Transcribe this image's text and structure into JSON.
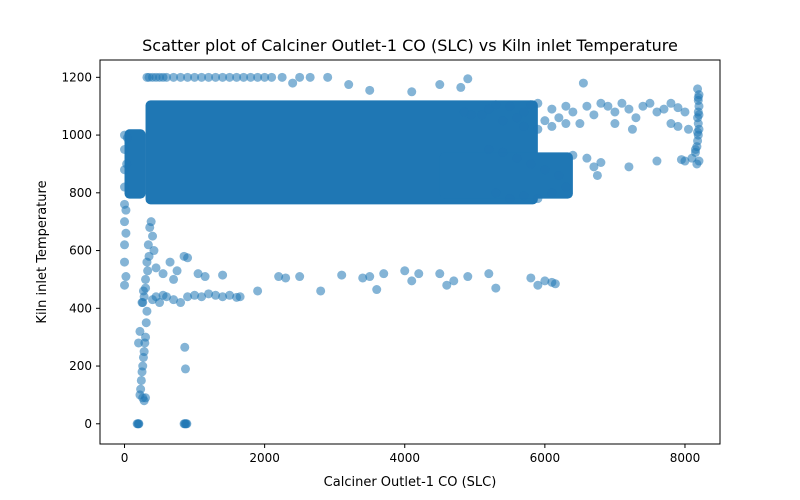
{
  "chart_data": {
    "type": "scatter",
    "title": "Scatter plot of Calciner Outlet-1 CO (SLC) vs Kiln inlet Temperature",
    "xlabel": "Calciner Outlet-1 CO (SLC)",
    "ylabel": "Kiln inlet Temperature",
    "xlim": [
      -350,
      8500
    ],
    "ylim": [
      -70,
      1260
    ],
    "xticks": [
      0,
      2000,
      4000,
      6000,
      8000
    ],
    "yticks": [
      0,
      200,
      400,
      600,
      800,
      1000,
      1200
    ],
    "grid": false,
    "marker_color": "#1f77b4",
    "marker_alpha": 0.55,
    "dense_regions": [
      {
        "x": [
          300,
          5900
        ],
        "y": [
          760,
          1120
        ]
      },
      {
        "x": [
          0,
          300
        ],
        "y": [
          780,
          1020
        ]
      },
      {
        "x": [
          4500,
          6400
        ],
        "y": [
          780,
          940
        ]
      }
    ],
    "points": [
      [
        0,
        480
      ],
      [
        0,
        560
      ],
      [
        0,
        620
      ],
      [
        0,
        700
      ],
      [
        0,
        760
      ],
      [
        0,
        820
      ],
      [
        0,
        880
      ],
      [
        0,
        950
      ],
      [
        0,
        1000
      ],
      [
        20,
        510
      ],
      [
        20,
        660
      ],
      [
        20,
        740
      ],
      [
        30,
        900
      ],
      [
        40,
        990
      ],
      [
        180,
        0
      ],
      [
        190,
        0
      ],
      [
        200,
        0
      ],
      [
        205,
        0
      ],
      [
        220,
        100
      ],
      [
        240,
        150
      ],
      [
        260,
        200
      ],
      [
        280,
        250
      ],
      [
        300,
        300
      ],
      [
        310,
        350
      ],
      [
        320,
        390
      ],
      [
        230,
        120
      ],
      [
        250,
        180
      ],
      [
        270,
        230
      ],
      [
        290,
        280
      ],
      [
        260,
        90
      ],
      [
        280,
        80
      ],
      [
        300,
        90
      ],
      [
        200,
        280
      ],
      [
        220,
        320
      ],
      [
        250,
        420
      ],
      [
        270,
        460
      ],
      [
        300,
        500
      ],
      [
        320,
        560
      ],
      [
        340,
        620
      ],
      [
        360,
        680
      ],
      [
        380,
        700
      ],
      [
        400,
        650
      ],
      [
        420,
        600
      ],
      [
        350,
        580
      ],
      [
        330,
        530
      ],
      [
        300,
        470
      ],
      [
        280,
        440
      ],
      [
        260,
        420
      ],
      [
        400,
        430
      ],
      [
        450,
        440
      ],
      [
        500,
        420
      ],
      [
        550,
        445
      ],
      [
        600,
        440
      ],
      [
        700,
        430
      ],
      [
        800,
        420
      ],
      [
        900,
        440
      ],
      [
        1000,
        445
      ],
      [
        1100,
        440
      ],
      [
        1200,
        450
      ],
      [
        1300,
        445
      ],
      [
        1400,
        440
      ],
      [
        1500,
        445
      ],
      [
        1600,
        438
      ],
      [
        1650,
        440
      ],
      [
        450,
        540
      ],
      [
        550,
        520
      ],
      [
        650,
        560
      ],
      [
        700,
        500
      ],
      [
        750,
        530
      ],
      [
        850,
        580
      ],
      [
        900,
        575
      ],
      [
        1050,
        520
      ],
      [
        1150,
        510
      ],
      [
        1400,
        515
      ],
      [
        1900,
        460
      ],
      [
        2200,
        510
      ],
      [
        2300,
        505
      ],
      [
        2500,
        510
      ],
      [
        2800,
        460
      ],
      [
        3100,
        515
      ],
      [
        3400,
        505
      ],
      [
        3500,
        510
      ],
      [
        3600,
        465
      ],
      [
        3700,
        520
      ],
      [
        4000,
        530
      ],
      [
        4100,
        495
      ],
      [
        4200,
        520
      ],
      [
        4500,
        520
      ],
      [
        4600,
        480
      ],
      [
        4700,
        495
      ],
      [
        4900,
        510
      ],
      [
        5200,
        520
      ],
      [
        5300,
        470
      ],
      [
        5800,
        505
      ],
      [
        5900,
        480
      ],
      [
        6000,
        495
      ],
      [
        6100,
        490
      ],
      [
        6150,
        485
      ],
      [
        850,
        0
      ],
      [
        860,
        0
      ],
      [
        870,
        0
      ],
      [
        880,
        0
      ],
      [
        890,
        0
      ],
      [
        870,
        190
      ],
      [
        860,
        265
      ],
      [
        320,
        1200
      ],
      [
        350,
        1200
      ],
      [
        400,
        1200
      ],
      [
        450,
        1200
      ],
      [
        500,
        1200
      ],
      [
        550,
        1200
      ],
      [
        600,
        1200
      ],
      [
        700,
        1200
      ],
      [
        800,
        1200
      ],
      [
        900,
        1200
      ],
      [
        1000,
        1200
      ],
      [
        1100,
        1200
      ],
      [
        1200,
        1200
      ],
      [
        1300,
        1200
      ],
      [
        1400,
        1200
      ],
      [
        1500,
        1200
      ],
      [
        1600,
        1200
      ],
      [
        1700,
        1200
      ],
      [
        1800,
        1200
      ],
      [
        1900,
        1200
      ],
      [
        2000,
        1200
      ],
      [
        2100,
        1200
      ],
      [
        2250,
        1200
      ],
      [
        2500,
        1200
      ],
      [
        2650,
        1200
      ],
      [
        2900,
        1200
      ],
      [
        2400,
        1180
      ],
      [
        3200,
        1175
      ],
      [
        3500,
        1155
      ],
      [
        4100,
        1150
      ],
      [
        4500,
        1175
      ],
      [
        4800,
        1165
      ],
      [
        4900,
        1195
      ],
      [
        4850,
        1080
      ],
      [
        4950,
        1070
      ],
      [
        5100,
        1070
      ],
      [
        5200,
        1090
      ],
      [
        5300,
        1105
      ],
      [
        5400,
        1050
      ],
      [
        5500,
        1100
      ],
      [
        5600,
        1060
      ],
      [
        5700,
        1080
      ],
      [
        5800,
        1105
      ],
      [
        5900,
        1110
      ],
      [
        6000,
        1050
      ],
      [
        6100,
        1090
      ],
      [
        6200,
        1060
      ],
      [
        6300,
        1100
      ],
      [
        6400,
        1080
      ],
      [
        6500,
        1040
      ],
      [
        6600,
        1100
      ],
      [
        6700,
        1070
      ],
      [
        6800,
        1110
      ],
      [
        6900,
        1100
      ],
      [
        7000,
        1080
      ],
      [
        7100,
        1110
      ],
      [
        7200,
        1090
      ],
      [
        7300,
        1060
      ],
      [
        7400,
        1100
      ],
      [
        7500,
        1110
      ],
      [
        7600,
        1080
      ],
      [
        7700,
        1090
      ],
      [
        7800,
        1110
      ],
      [
        7900,
        1095
      ],
      [
        8000,
        1080
      ],
      [
        6550,
        1180
      ],
      [
        5700,
        1030
      ],
      [
        5900,
        1020
      ],
      [
        6100,
        1030
      ],
      [
        6300,
        1040
      ],
      [
        7000,
        1040
      ],
      [
        7250,
        1020
      ],
      [
        7900,
        1030
      ],
      [
        8050,
        1020
      ],
      [
        7800,
        1040
      ],
      [
        5200,
        950
      ],
      [
        5400,
        940
      ],
      [
        5600,
        920
      ],
      [
        5800,
        900
      ],
      [
        6000,
        880
      ],
      [
        6200,
        860
      ],
      [
        6400,
        930
      ],
      [
        5300,
        800
      ],
      [
        5500,
        780
      ],
      [
        5700,
        790
      ],
      [
        5900,
        780
      ],
      [
        6100,
        800
      ],
      [
        6300,
        820
      ],
      [
        6600,
        920
      ],
      [
        6700,
        890
      ],
      [
        6800,
        905
      ],
      [
        6750,
        860
      ],
      [
        7200,
        890
      ],
      [
        7600,
        910
      ],
      [
        7950,
        915
      ],
      [
        8000,
        910
      ],
      [
        8100,
        920
      ],
      [
        8150,
        940
      ],
      [
        8170,
        960
      ],
      [
        8180,
        980
      ],
      [
        8190,
        1000
      ],
      [
        8200,
        1020
      ],
      [
        8190,
        1040
      ],
      [
        8180,
        1060
      ],
      [
        8190,
        1080
      ],
      [
        8200,
        1100
      ],
      [
        8190,
        1120
      ],
      [
        8200,
        1140
      ],
      [
        8180,
        1160
      ],
      [
        8200,
        910
      ],
      [
        8170,
        900
      ],
      [
        8150,
        950
      ],
      [
        8180,
        1010
      ],
      [
        8200,
        1070
      ],
      [
        8190,
        1130
      ]
    ]
  }
}
